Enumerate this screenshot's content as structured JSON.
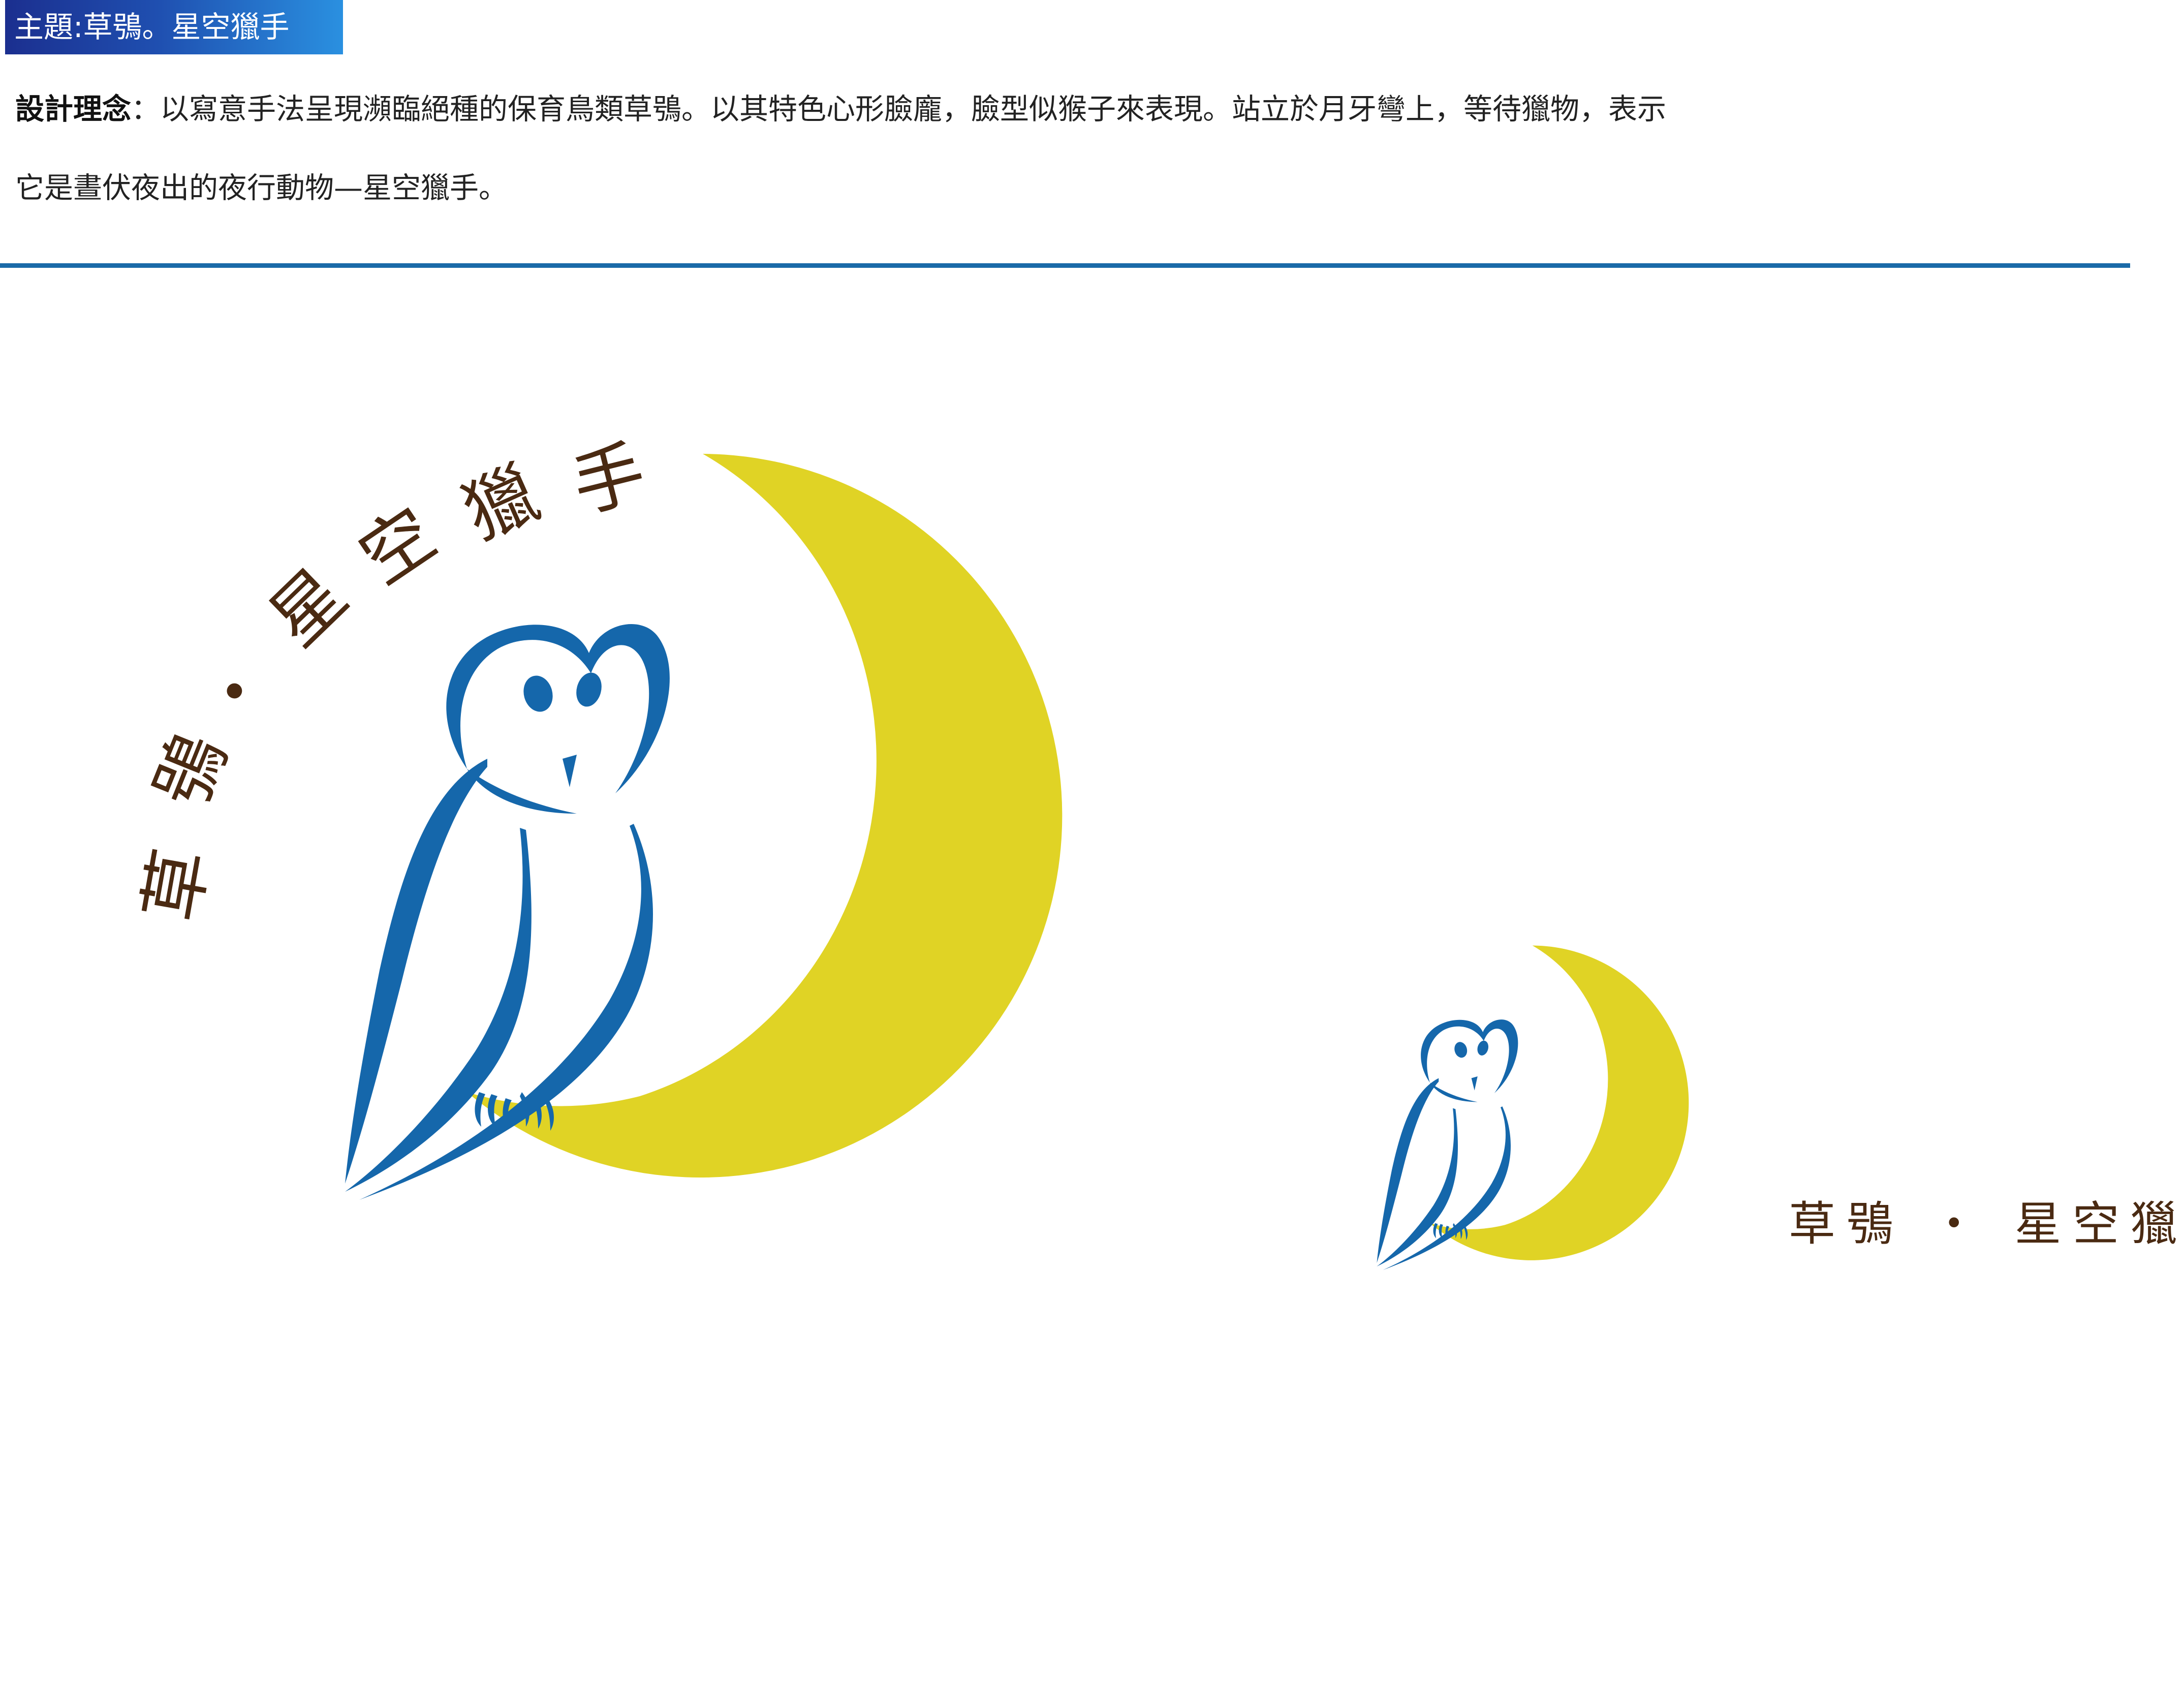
{
  "header": {
    "theme": "主題:草鴞。星空獵手"
  },
  "description": {
    "label": "設計理念",
    "line1": "：以寫意手法呈現瀕臨絕種的保育鳥類草鴞。以其特色心形臉龐，臉型似猴子來表現。站立於月牙彎上，等待獵物，表示",
    "line2": "它是晝伏夜出的夜行動物—星空獵手。"
  },
  "logo": {
    "arc_chars": [
      "草",
      "鴞",
      "・",
      "星",
      "空",
      "獵",
      "手"
    ],
    "caption": "草鴞 ・ 星空獵手"
  },
  "colors": {
    "owl_blue": "#1567ab",
    "moon_yellow": "#e0d325",
    "text_brown": "#4a2a12",
    "divider_blue": "#1a6aa8"
  }
}
